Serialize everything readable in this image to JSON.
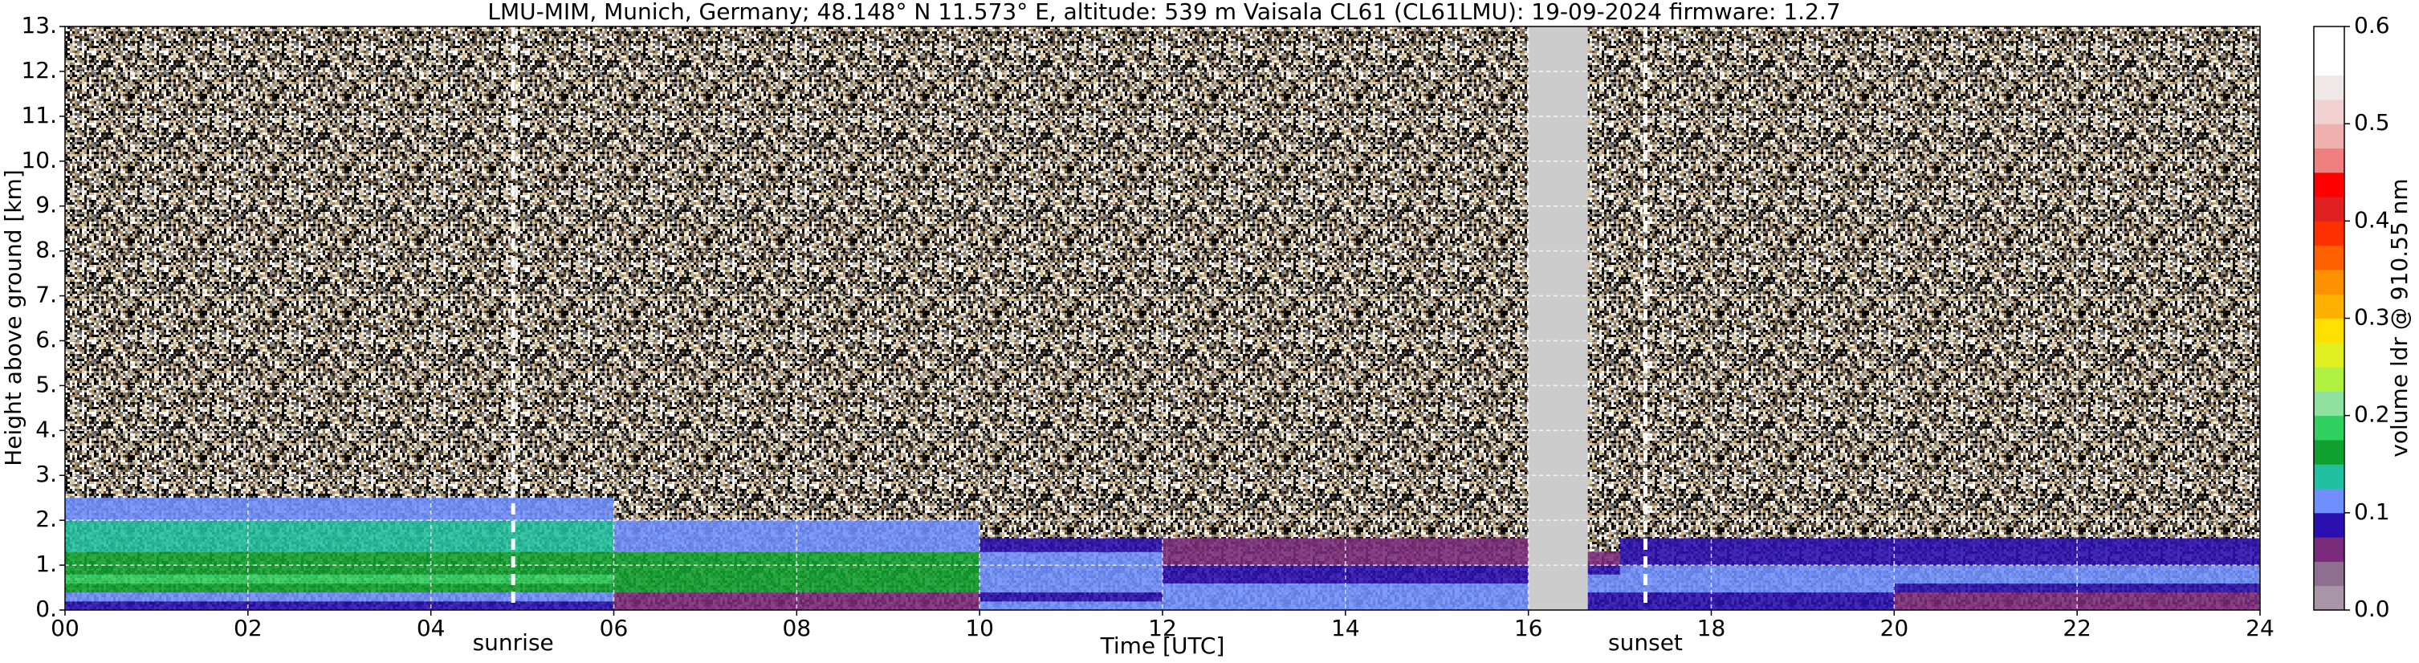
{
  "chart_data": {
    "type": "heatmap",
    "title": "LMU-MIM, Munich, Germany; 48.148° N 11.573° E, altitude: 539 m    Vaisala CL61 (CL61LMU): 19-09-2024    firmware: 1.2.7",
    "xlabel": "Time [UTC]",
    "ylabel": "Height above ground [km]",
    "xlim": [
      0,
      24
    ],
    "ylim": [
      0,
      13
    ],
    "xticks": [
      {
        "value": 0,
        "label": "00"
      },
      {
        "value": 2,
        "label": "02"
      },
      {
        "value": 4,
        "label": "04"
      },
      {
        "value": 6,
        "label": "06"
      },
      {
        "value": 8,
        "label": "08"
      },
      10,
      12,
      14,
      16,
      18,
      20,
      22,
      24
    ],
    "yticks": [
      {
        "value": 0,
        "label": "0."
      },
      {
        "value": 1,
        "label": "1."
      },
      {
        "value": 2,
        "label": "2."
      },
      {
        "value": 3,
        "label": "3."
      },
      {
        "value": 4,
        "label": "4."
      },
      {
        "value": 5,
        "label": "5."
      },
      {
        "value": 6,
        "label": "6."
      },
      {
        "value": 7,
        "label": "7."
      },
      {
        "value": 8,
        "label": "8."
      },
      {
        "value": 9,
        "label": "9."
      },
      {
        "value": 10,
        "label": "10."
      },
      {
        "value": 11,
        "label": "11."
      },
      {
        "value": 12,
        "label": "12."
      },
      {
        "value": 13,
        "label": "13."
      }
    ],
    "grid": true,
    "x_edges": [
      0,
      1,
      2,
      3,
      4,
      5,
      6,
      7,
      8,
      9,
      10,
      11,
      12,
      13,
      14,
      15,
      16,
      17,
      18,
      19,
      20,
      21,
      22,
      23,
      24
    ],
    "y_edges": [
      0,
      0.2,
      0.4,
      0.6,
      0.8,
      1.0,
      1.3,
      1.6,
      2.0,
      2.5
    ],
    "z": [
      [
        0.08,
        0.08,
        0.08,
        0.08,
        0.08,
        0.08,
        0.07,
        0.07,
        0.06,
        0.06,
        0.1,
        0.1,
        0.11,
        0.11,
        0.11,
        0.11,
        0.08,
        0.08,
        0.08,
        0.08,
        0.06,
        0.06,
        0.06,
        0.06
      ],
      [
        0.11,
        0.11,
        0.11,
        0.11,
        0.11,
        0.11,
        0.06,
        0.06,
        0.06,
        0.06,
        0.09,
        0.09,
        0.11,
        0.11,
        0.11,
        0.11,
        0.09,
        0.08,
        0.08,
        0.08,
        0.07,
        0.07,
        0.07,
        0.07
      ],
      [
        0.17,
        0.17,
        0.17,
        0.17,
        0.17,
        0.17,
        0.16,
        0.16,
        0.16,
        0.16,
        0.11,
        0.11,
        0.1,
        0.1,
        0.1,
        0.1,
        0.1,
        0.1,
        0.1,
        0.1,
        0.09,
        0.09,
        0.09,
        0.09
      ],
      [
        0.19,
        0.19,
        0.19,
        0.19,
        0.19,
        0.19,
        0.17,
        0.17,
        0.17,
        0.17,
        0.11,
        0.11,
        0.09,
        0.09,
        0.09,
        0.09,
        0.1,
        0.11,
        0.11,
        0.11,
        0.11,
        0.11,
        0.11,
        0.11
      ],
      [
        0.16,
        0.16,
        0.16,
        0.16,
        0.16,
        0.16,
        0.16,
        0.16,
        0.16,
        0.16,
        0.12,
        0.12,
        0.08,
        0.08,
        0.08,
        0.08,
        0.09,
        0.1,
        0.1,
        0.1,
        0.1,
        0.1,
        0.1,
        0.1
      ],
      [
        0.16,
        0.16,
        0.16,
        0.16,
        0.16,
        0.16,
        0.15,
        0.15,
        0.15,
        0.15,
        0.11,
        0.11,
        0.06,
        0.06,
        0.06,
        0.06,
        0.07,
        0.09,
        0.09,
        0.09,
        0.09,
        0.09,
        0.09,
        0.09
      ],
      [
        0.14,
        0.14,
        0.14,
        0.14,
        0.14,
        0.14,
        0.11,
        0.11,
        0.11,
        0.11,
        0.09,
        0.09,
        0.06,
        0.06,
        0.06,
        0.06,
        null,
        0.08,
        0.08,
        0.08,
        0.08,
        0.08,
        0.08,
        0.08
      ],
      [
        0.14,
        0.14,
        0.14,
        0.14,
        0.14,
        0.14,
        0.11,
        0.11,
        0.11,
        0.11,
        null,
        null,
        null,
        null,
        null,
        null,
        null,
        null,
        null,
        null,
        null,
        null,
        null,
        null
      ],
      [
        0.11,
        0.11,
        0.11,
        0.11,
        0.11,
        0.11,
        null,
        null,
        null,
        null,
        null,
        null,
        null,
        null,
        null,
        null,
        null,
        null,
        null,
        null,
        null,
        null,
        null,
        null
      ]
    ],
    "gap": [
      16.0,
      16.65
    ],
    "gap_color": "#cccccc",
    "annotations": [
      {
        "text": "sunrise",
        "x": 4.9
      },
      {
        "text": "sunset",
        "x": 17.28
      }
    ],
    "colorbar": {
      "label": "volume ldr @ 910.55 nm",
      "lim": [
        0,
        0.6
      ],
      "ticks": [
        {
          "value": 0,
          "label": "0.0"
        },
        0.1,
        0.2,
        0.3,
        0.4,
        0.5,
        0.6
      ],
      "colors": [
        "#a896a8",
        "#8f6f8f",
        "#7a2a7a",
        "#2a10b0",
        "#6f8fff",
        "#20c0a0",
        "#10a030",
        "#30d060",
        "#90e0a0",
        "#b0f040",
        "#e0f020",
        "#ffe000",
        "#ffb000",
        "#ff9000",
        "#ff6000",
        "#ff3000",
        "#e02020",
        "#ff0000",
        "#f08080",
        "#f0b0b0",
        "#f0d0d0",
        "#f0e8e8",
        "#ffffff",
        "#ffffff"
      ]
    }
  }
}
